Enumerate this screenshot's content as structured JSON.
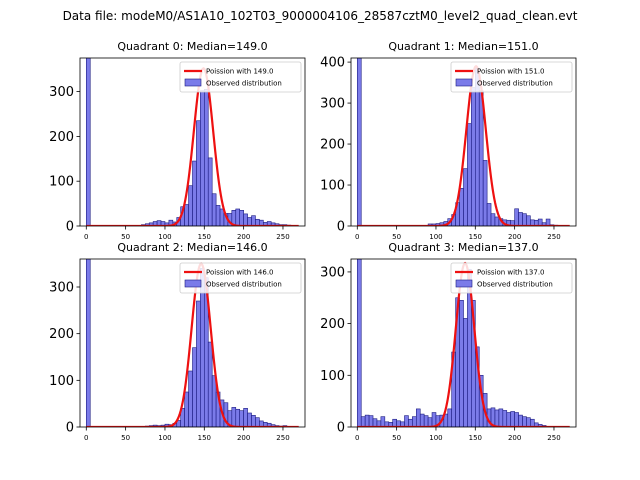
{
  "suptitle": "Data file: modeM0/AS1A10_102T03_9000004106_28587cztM0_level2_quad_clean.evt",
  "colors": {
    "bar_fill": "#7b7be9",
    "bar_edge": "#1a1a80",
    "curve": "#ee1111",
    "axis": "#000000"
  },
  "chart_data": [
    {
      "type": "bar",
      "title": "Quadrant 0: Median=149.0",
      "median": 149.0,
      "xlim": [
        -8,
        278
      ],
      "ylim": [
        0,
        375
      ],
      "xticks": [
        0,
        50,
        100,
        150,
        200,
        250
      ],
      "yticks": [
        0,
        100,
        200,
        300
      ],
      "bin_width": 5,
      "bins": [
        [
          0,
          375
        ],
        [
          70,
          3
        ],
        [
          75,
          5
        ],
        [
          80,
          7
        ],
        [
          85,
          10
        ],
        [
          90,
          12
        ],
        [
          95,
          10
        ],
        [
          100,
          7
        ],
        [
          105,
          13
        ],
        [
          110,
          9
        ],
        [
          115,
          19
        ],
        [
          120,
          43
        ],
        [
          125,
          48
        ],
        [
          130,
          90
        ],
        [
          135,
          145
        ],
        [
          140,
          235
        ],
        [
          145,
          302
        ],
        [
          150,
          305
        ],
        [
          155,
          152
        ],
        [
          160,
          72
        ],
        [
          165,
          46
        ],
        [
          170,
          38
        ],
        [
          175,
          28
        ],
        [
          180,
          28
        ],
        [
          185,
          35
        ],
        [
          190,
          38
        ],
        [
          195,
          35
        ],
        [
          200,
          27
        ],
        [
          205,
          19
        ],
        [
          210,
          23
        ],
        [
          215,
          15
        ],
        [
          220,
          13
        ],
        [
          225,
          8
        ],
        [
          230,
          10
        ],
        [
          235,
          7
        ],
        [
          240,
          5
        ],
        [
          245,
          3
        ],
        [
          250,
          3
        ],
        [
          255,
          2
        ]
      ],
      "legend": [
        "Poission with 149.0",
        "Observed distribution"
      ],
      "poisson_lambda": 149.0,
      "curve_peak": 352,
      "curve_sigma": 12.2
    },
    {
      "type": "bar",
      "title": "Quadrant 1: Median=151.0",
      "median": 151.0,
      "xlim": [
        -8,
        278
      ],
      "ylim": [
        0,
        410
      ],
      "xticks": [
        0,
        50,
        100,
        150,
        200,
        250
      ],
      "yticks": [
        0,
        100,
        200,
        300,
        400
      ],
      "bin_width": 5,
      "bins": [
        [
          0,
          410
        ],
        [
          90,
          5
        ],
        [
          95,
          5
        ],
        [
          100,
          6
        ],
        [
          105,
          8
        ],
        [
          110,
          11
        ],
        [
          115,
          18
        ],
        [
          120,
          28
        ],
        [
          125,
          57
        ],
        [
          130,
          92
        ],
        [
          135,
          140
        ],
        [
          140,
          250
        ],
        [
          145,
          338
        ],
        [
          150,
          385
        ],
        [
          155,
          330
        ],
        [
          160,
          160
        ],
        [
          165,
          55
        ],
        [
          170,
          30
        ],
        [
          175,
          22
        ],
        [
          180,
          18
        ],
        [
          185,
          15
        ],
        [
          190,
          14
        ],
        [
          195,
          13
        ],
        [
          200,
          42
        ],
        [
          205,
          33
        ],
        [
          210,
          30
        ],
        [
          215,
          25
        ],
        [
          220,
          15
        ],
        [
          225,
          14
        ],
        [
          230,
          17
        ],
        [
          235,
          8
        ],
        [
          240,
          17
        ],
        [
          245,
          3
        ],
        [
          250,
          2
        ]
      ],
      "legend": [
        "Poission with 151.0",
        "Observed distribution"
      ],
      "poisson_lambda": 151.0,
      "curve_peak": 390,
      "curve_sigma": 12.3
    },
    {
      "type": "bar",
      "title": "Quadrant 2: Median=146.0",
      "median": 146.0,
      "xlim": [
        -8,
        278
      ],
      "ylim": [
        0,
        360
      ],
      "xticks": [
        0,
        50,
        100,
        150,
        200,
        250
      ],
      "yticks": [
        0,
        100,
        200,
        300
      ],
      "bin_width": 5,
      "bins": [
        [
          0,
          360
        ],
        [
          75,
          2
        ],
        [
          80,
          3
        ],
        [
          85,
          4
        ],
        [
          90,
          3
        ],
        [
          95,
          4
        ],
        [
          100,
          6
        ],
        [
          105,
          5
        ],
        [
          110,
          8
        ],
        [
          115,
          14
        ],
        [
          120,
          40
        ],
        [
          125,
          75
        ],
        [
          130,
          120
        ],
        [
          135,
          170
        ],
        [
          140,
          270
        ],
        [
          145,
          340
        ],
        [
          150,
          320
        ],
        [
          155,
          182
        ],
        [
          160,
          110
        ],
        [
          165,
          75
        ],
        [
          170,
          58
        ],
        [
          175,
          52
        ],
        [
          180,
          35
        ],
        [
          185,
          42
        ],
        [
          190,
          38
        ],
        [
          195,
          35
        ],
        [
          200,
          40
        ],
        [
          205,
          30
        ],
        [
          210,
          25
        ],
        [
          215,
          20
        ],
        [
          220,
          13
        ],
        [
          225,
          10
        ],
        [
          230,
          8
        ],
        [
          235,
          5
        ],
        [
          240,
          3
        ],
        [
          245,
          2
        ],
        [
          250,
          3
        ]
      ],
      "legend": [
        "Poission with 146.0",
        "Observed distribution"
      ],
      "poisson_lambda": 146.0,
      "curve_peak": 350,
      "curve_sigma": 12.1
    },
    {
      "type": "bar",
      "title": "Quadrant 3: Median=137.0",
      "median": 137.0,
      "xlim": [
        -8,
        278
      ],
      "ylim": [
        0,
        325
      ],
      "xticks": [
        0,
        50,
        100,
        150,
        200,
        250
      ],
      "yticks": [
        0,
        100,
        200,
        300
      ],
      "bin_width": 5,
      "bins": [
        [
          0,
          325
        ],
        [
          5,
          20
        ],
        [
          10,
          23
        ],
        [
          15,
          22
        ],
        [
          20,
          16
        ],
        [
          25,
          12
        ],
        [
          30,
          20
        ],
        [
          35,
          10
        ],
        [
          40,
          9
        ],
        [
          45,
          15
        ],
        [
          50,
          12
        ],
        [
          55,
          10
        ],
        [
          60,
          22
        ],
        [
          65,
          15
        ],
        [
          70,
          20
        ],
        [
          75,
          35
        ],
        [
          80,
          25
        ],
        [
          85,
          22
        ],
        [
          90,
          18
        ],
        [
          95,
          28
        ],
        [
          100,
          22
        ],
        [
          105,
          23
        ],
        [
          110,
          25
        ],
        [
          115,
          35
        ],
        [
          120,
          145
        ],
        [
          125,
          250
        ],
        [
          130,
          245
        ],
        [
          135,
          210
        ],
        [
          140,
          305
        ],
        [
          145,
          245
        ],
        [
          150,
          155
        ],
        [
          155,
          100
        ],
        [
          160,
          65
        ],
        [
          165,
          35
        ],
        [
          170,
          37
        ],
        [
          175,
          33
        ],
        [
          180,
          35
        ],
        [
          185,
          32
        ],
        [
          190,
          28
        ],
        [
          195,
          30
        ],
        [
          200,
          28
        ],
        [
          205,
          23
        ],
        [
          210,
          20
        ],
        [
          215,
          18
        ],
        [
          220,
          15
        ],
        [
          225,
          8
        ],
        [
          230,
          5
        ],
        [
          235,
          3
        ]
      ],
      "legend": [
        "Poission with 137.0",
        "Observed distribution"
      ],
      "poisson_lambda": 137.0,
      "curve_peak": 317,
      "curve_sigma": 11.7
    }
  ]
}
